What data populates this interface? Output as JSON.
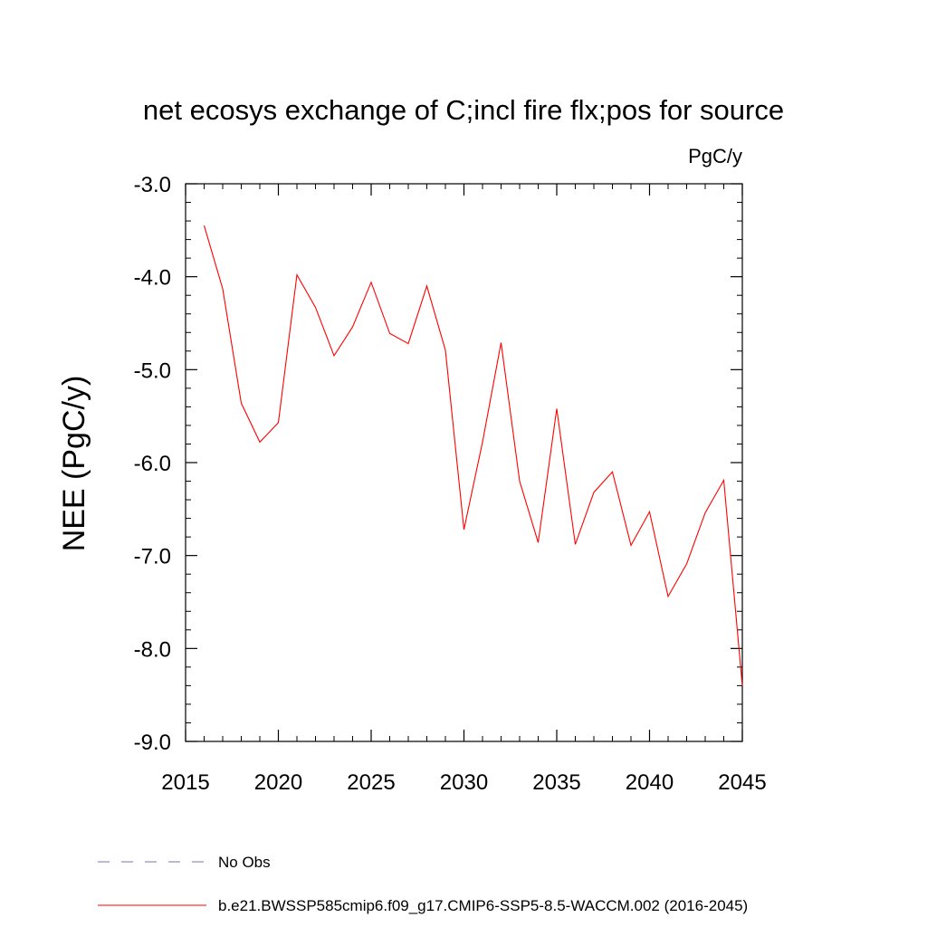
{
  "chart_data": {
    "type": "line",
    "title": "net ecosys exchange of C;incl fire flx;pos for source",
    "units": "PgC/y",
    "ylabel": "NEE  (PgC/y)",
    "xlabel": "",
    "xlim": [
      2015,
      2045
    ],
    "ylim": [
      -9.0,
      -3.0
    ],
    "xticks": [
      2015,
      2020,
      2025,
      2030,
      2035,
      2040,
      2045
    ],
    "xtick_labels": [
      "2015",
      "2020",
      "2025",
      "2030",
      "2035",
      "2040",
      "2045"
    ],
    "yticks": [
      -3.0,
      -4.0,
      -5.0,
      -6.0,
      -7.0,
      -8.0,
      -9.0
    ],
    "ytick_labels": [
      "-3.0",
      "-4.0",
      "-5.0",
      "-6.0",
      "-7.0",
      "-8.0",
      "-9.0"
    ],
    "grid": false,
    "legend_position": "bottom",
    "series": [
      {
        "name": "b.e21.BWSSP585cmip6.f09_g17.CMIP6-SSP5-8.5-WACCM.002 (2016-2045)",
        "color": "#ff0000",
        "style": "solid",
        "x": [
          2016,
          2017,
          2018,
          2019,
          2020,
          2021,
          2022,
          2023,
          2024,
          2025,
          2026,
          2027,
          2028,
          2029,
          2030,
          2031,
          2032,
          2033,
          2034,
          2035,
          2036,
          2037,
          2038,
          2039,
          2040,
          2041,
          2042,
          2043,
          2044,
          2045
        ],
        "values": [
          -3.45,
          -4.13,
          -5.36,
          -5.78,
          -5.57,
          -3.98,
          -4.33,
          -4.85,
          -4.54,
          -4.06,
          -4.61,
          -4.72,
          -4.1,
          -4.79,
          -6.72,
          -5.78,
          -4.71,
          -6.2,
          -6.86,
          -5.42,
          -6.88,
          -6.32,
          -6.1,
          -6.89,
          -6.53,
          -7.44,
          -7.09,
          -6.54,
          -6.19,
          -8.4
        ]
      }
    ],
    "legend": [
      {
        "label": "No Obs",
        "color": "#7b6fb0",
        "style": "dashed"
      },
      {
        "label": "b.e21.BWSSP585cmip6.f09_g17.CMIP6-SSP5-8.5-WACCM.002 (2016-2045)",
        "color": "#ff0000",
        "style": "solid"
      }
    ]
  }
}
